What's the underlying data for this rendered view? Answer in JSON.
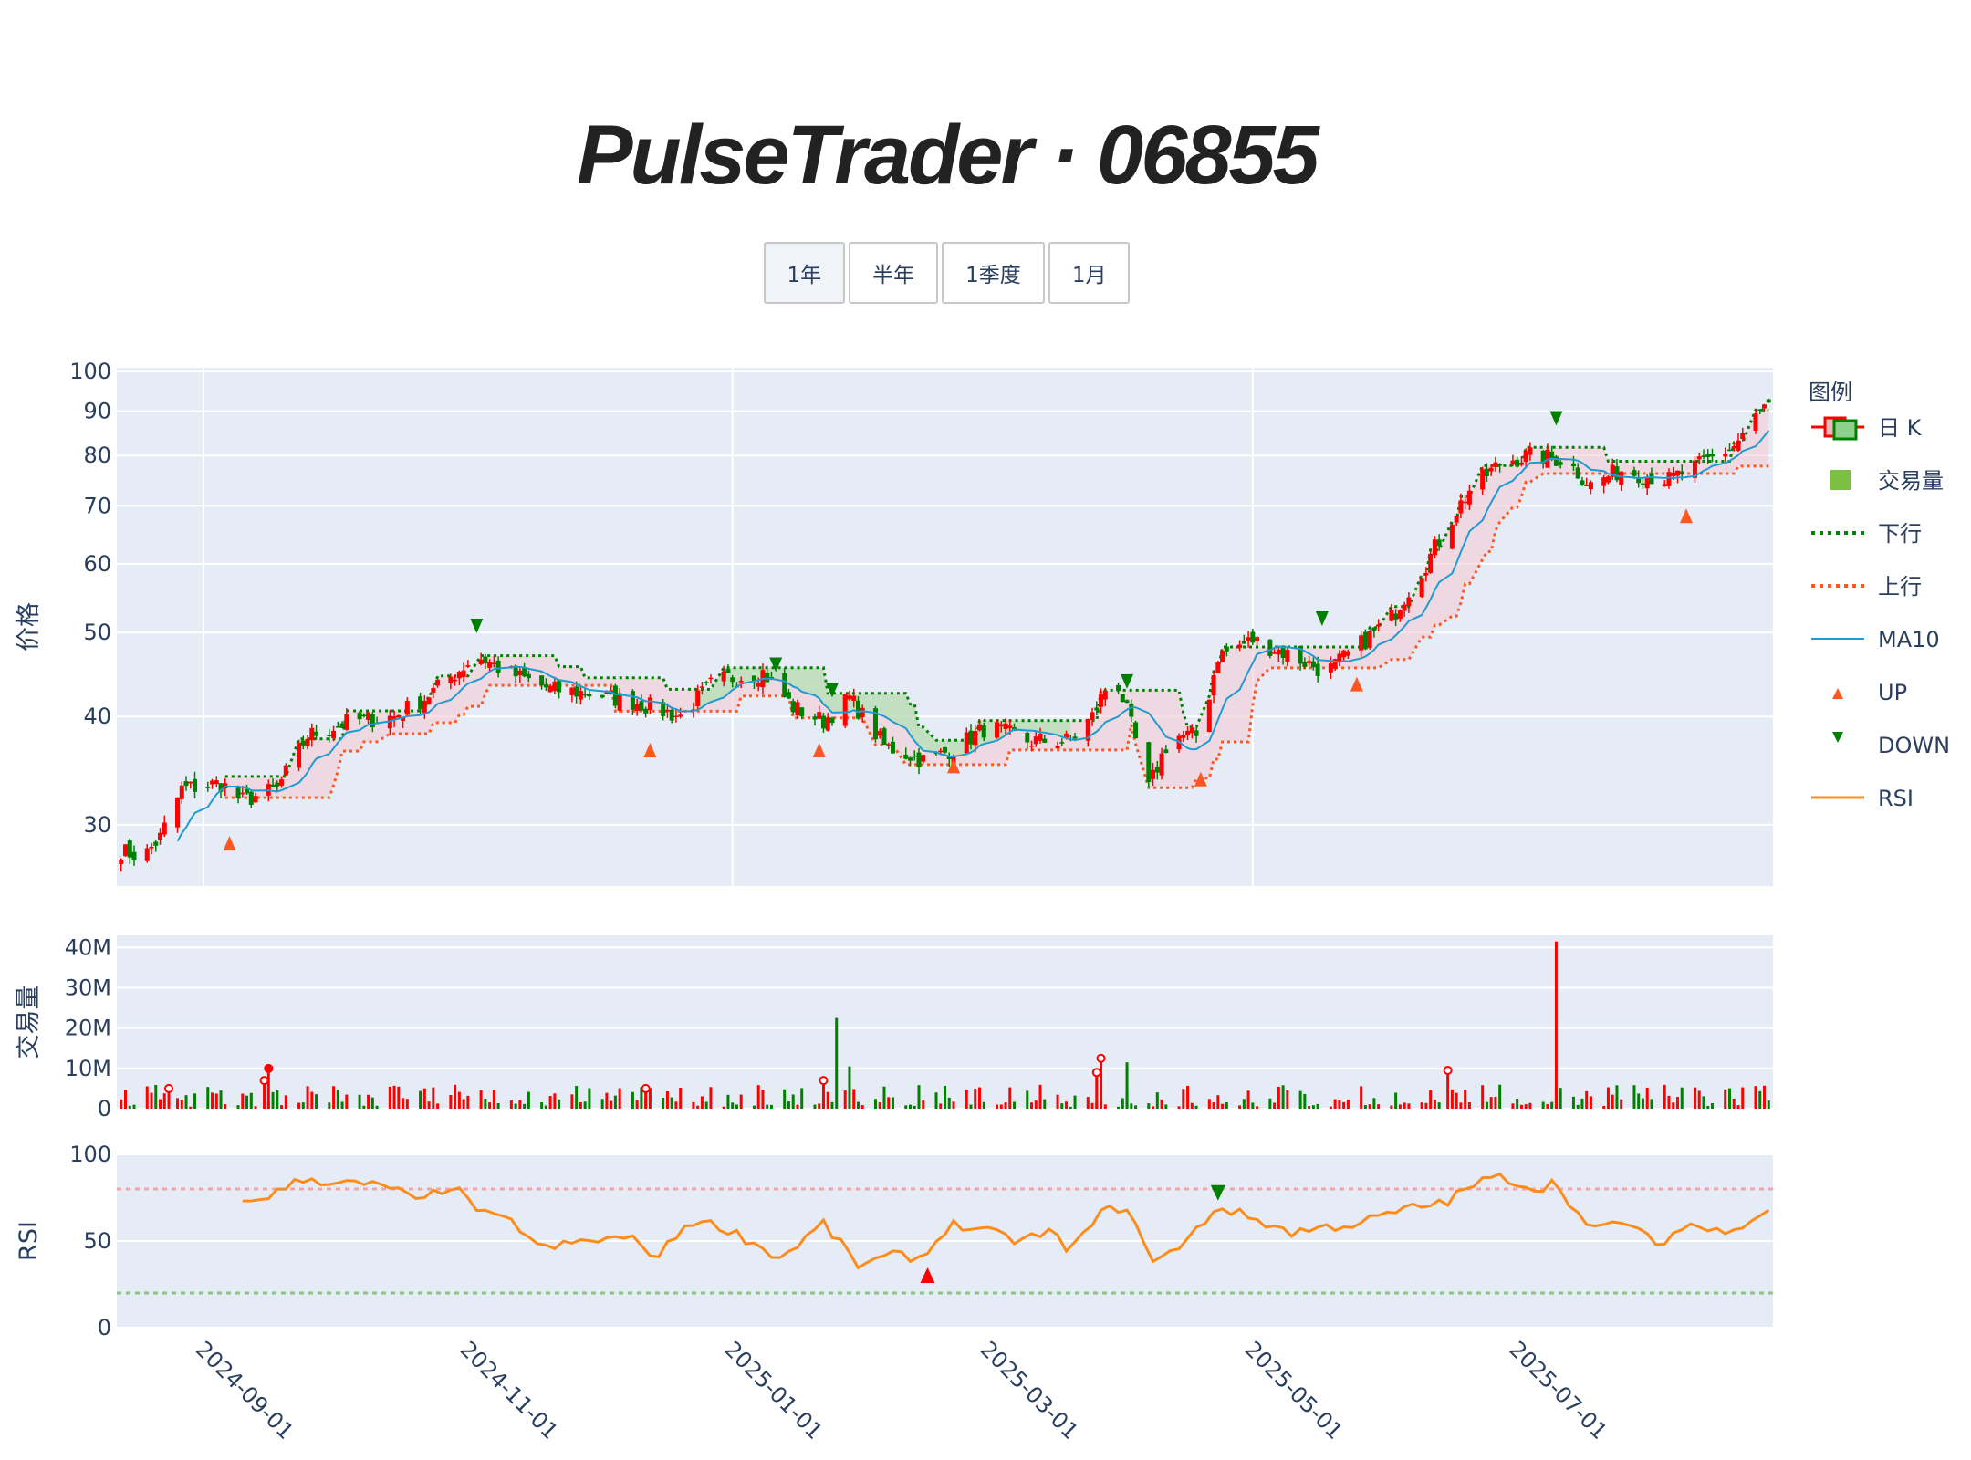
{
  "title": "PulseTrader · 06855",
  "range_buttons": [
    {
      "label": "1年",
      "active": true
    },
    {
      "label": "半年",
      "active": false
    },
    {
      "label": "1季度",
      "active": false
    },
    {
      "label": "1月",
      "active": false
    }
  ],
  "legend": {
    "title": "图例",
    "items": [
      "日 K",
      "交易量",
      "下行",
      "上行",
      "MA10",
      "UP",
      "DOWN",
      "RSI"
    ]
  },
  "colors": {
    "up": "#ff0000",
    "down": "#008000",
    "ma10": "#1f9bd1",
    "rsi": "#ff8c1a",
    "upper_band": "#ff5722",
    "lower_band": "#008000",
    "plot_bg": "#e5ecf6",
    "overbought": "#f4a3a8",
    "oversold": "#8fbf8f"
  },
  "chart_data": {
    "type": "candlestick",
    "x_start": "2024-08-12",
    "x_end": "2025-08-29",
    "x_ticks": [
      "2024-09-01",
      "2024-11-01",
      "2025-01-01",
      "2025-03-01",
      "2025-05-01",
      "2025-07-01"
    ],
    "price_axis": {
      "title": "价格",
      "scale": "log",
      "range": [
        25.5,
        101
      ],
      "ticks": [
        30,
        40,
        50,
        60,
        70,
        80,
        90,
        100
      ]
    },
    "volume_axis": {
      "title": "交易量",
      "range": [
        0,
        43000000
      ],
      "ticks": [
        "0",
        "10M",
        "20M",
        "30M",
        "40M"
      ]
    },
    "rsi_axis": {
      "title": "RSI",
      "range": [
        0,
        100
      ],
      "ticks": [
        0,
        50,
        100
      ],
      "overbought": 80,
      "oversold": 20
    },
    "price_anchors": [
      [
        "2024-08-13",
        28
      ],
      [
        "2024-08-18",
        27.5
      ],
      [
        "2024-08-22",
        29
      ],
      [
        "2024-08-27",
        33
      ],
      [
        "2024-09-05",
        33.5
      ],
      [
        "2024-09-10",
        32
      ],
      [
        "2024-09-18",
        33
      ],
      [
        "2024-09-25",
        38
      ],
      [
        "2024-10-05",
        39.5
      ],
      [
        "2024-10-15",
        40
      ],
      [
        "2024-10-22",
        42
      ],
      [
        "2024-10-27",
        44
      ],
      [
        "2024-11-03",
        47
      ],
      [
        "2024-11-10",
        45
      ],
      [
        "2024-11-20",
        43
      ],
      [
        "2024-11-30",
        42.5
      ],
      [
        "2024-12-10",
        41.5
      ],
      [
        "2024-12-20",
        40
      ],
      [
        "2024-12-28",
        44
      ],
      [
        "2025-01-08",
        45
      ],
      [
        "2025-01-15",
        41
      ],
      [
        "2025-01-22",
        39.5
      ],
      [
        "2025-01-28",
        42
      ],
      [
        "2025-02-05",
        37
      ],
      [
        "2025-02-15",
        35.5
      ],
      [
        "2025-02-22",
        37
      ],
      [
        "2025-03-01",
        39
      ],
      [
        "2025-03-10",
        37.5
      ],
      [
        "2025-03-20",
        37.5
      ],
      [
        "2025-03-25",
        40
      ],
      [
        "2025-03-30",
        45
      ],
      [
        "2025-04-07",
        33
      ],
      [
        "2025-04-12",
        38
      ],
      [
        "2025-04-19",
        38
      ],
      [
        "2025-04-23",
        47
      ],
      [
        "2025-05-01",
        49
      ],
      [
        "2025-05-10",
        47
      ],
      [
        "2025-05-18",
        45
      ],
      [
        "2025-05-25",
        48
      ],
      [
        "2025-06-02",
        52
      ],
      [
        "2025-06-10",
        60
      ],
      [
        "2025-06-20",
        73
      ],
      [
        "2025-06-28",
        79
      ],
      [
        "2025-07-05",
        80
      ],
      [
        "2025-07-12",
        79
      ],
      [
        "2025-07-18",
        74
      ],
      [
        "2025-07-25",
        77
      ],
      [
        "2025-08-05",
        75
      ],
      [
        "2025-08-12",
        78
      ],
      [
        "2025-08-20",
        82
      ],
      [
        "2025-08-27",
        91
      ]
    ],
    "rsi_anchors": [
      [
        "2024-09-10",
        72
      ],
      [
        "2024-09-18",
        78
      ],
      [
        "2024-09-24",
        86
      ],
      [
        "2024-10-05",
        83
      ],
      [
        "2024-10-15",
        81
      ],
      [
        "2024-10-20",
        72
      ],
      [
        "2024-10-28",
        82
      ],
      [
        "2024-11-05",
        65
      ],
      [
        "2024-11-12",
        60
      ],
      [
        "2024-11-18",
        45
      ],
      [
        "2024-11-28",
        50
      ],
      [
        "2024-12-08",
        52
      ],
      [
        "2024-12-15",
        41
      ],
      [
        "2024-12-22",
        62
      ],
      [
        "2024-12-30",
        58
      ],
      [
        "2025-01-05",
        50
      ],
      [
        "2025-01-12",
        40
      ],
      [
        "2025-01-22",
        60
      ],
      [
        "2025-01-30",
        36
      ],
      [
        "2025-02-08",
        42
      ],
      [
        "2025-02-14",
        40
      ],
      [
        "2025-02-20",
        60
      ],
      [
        "2025-03-01",
        55
      ],
      [
        "2025-03-08",
        50
      ],
      [
        "2025-03-15",
        55
      ],
      [
        "2025-03-20",
        45
      ],
      [
        "2025-03-28",
        68
      ],
      [
        "2025-04-02",
        70
      ],
      [
        "2025-04-07",
        40
      ],
      [
        "2025-04-14",
        45
      ],
      [
        "2025-04-20",
        62
      ],
      [
        "2025-04-23",
        70
      ],
      [
        "2025-05-01",
        63
      ],
      [
        "2025-05-10",
        55
      ],
      [
        "2025-05-18",
        58
      ],
      [
        "2025-05-25",
        60
      ],
      [
        "2025-06-05",
        68
      ],
      [
        "2025-06-15",
        73
      ],
      [
        "2025-06-22",
        84
      ],
      [
        "2025-06-28",
        87
      ],
      [
        "2025-07-05",
        80
      ],
      [
        "2025-07-10",
        84
      ],
      [
        "2025-07-18",
        55
      ],
      [
        "2025-07-25",
        62
      ],
      [
        "2025-08-02",
        48
      ],
      [
        "2025-08-10",
        60
      ],
      [
        "2025-08-15",
        55
      ],
      [
        "2025-08-22",
        60
      ],
      [
        "2025-08-28",
        68
      ]
    ],
    "up_signals": [
      [
        "2024-09-07",
        28.5
      ],
      [
        "2024-12-13",
        36.5
      ],
      [
        "2025-01-21",
        36.5
      ],
      [
        "2025-02-21",
        35
      ],
      [
        "2025-04-19",
        33.8
      ],
      [
        "2025-05-25",
        43.5
      ],
      [
        "2025-08-09",
        68
      ]
    ],
    "down_signals": [
      [
        "2024-11-03",
        51
      ],
      [
        "2025-01-11",
        46
      ],
      [
        "2025-01-24",
        43
      ],
      [
        "2025-04-02",
        44
      ],
      [
        "2025-05-17",
        52
      ],
      [
        "2025-07-10",
        88.5
      ]
    ],
    "rsi_up_signals": [
      [
        "2025-02-15",
        30
      ]
    ],
    "rsi_down_signals": [
      [
        "2025-04-23",
        78
      ]
    ],
    "volume_markers": [
      {
        "date": "2024-08-24",
        "value": 5000000,
        "filled": false
      },
      {
        "date": "2024-09-15",
        "value": 7000000,
        "filled": false
      },
      {
        "date": "2024-09-16",
        "value": 10000000,
        "filled": true
      },
      {
        "date": "2024-12-12",
        "value": 5000000,
        "filled": false
      },
      {
        "date": "2025-01-22",
        "value": 7000000,
        "filled": false
      },
      {
        "date": "2025-03-26",
        "value": 9000000,
        "filled": false
      },
      {
        "date": "2025-03-27",
        "value": 12500000,
        "filled": false
      },
      {
        "date": "2025-06-15",
        "value": 9500000,
        "filled": false
      }
    ],
    "volume_spikes": [
      [
        "2025-01-25",
        22500000
      ],
      [
        "2025-01-28",
        10500000
      ],
      [
        "2025-07-10",
        41500000
      ],
      [
        "2025-04-02",
        11500000
      ]
    ]
  }
}
